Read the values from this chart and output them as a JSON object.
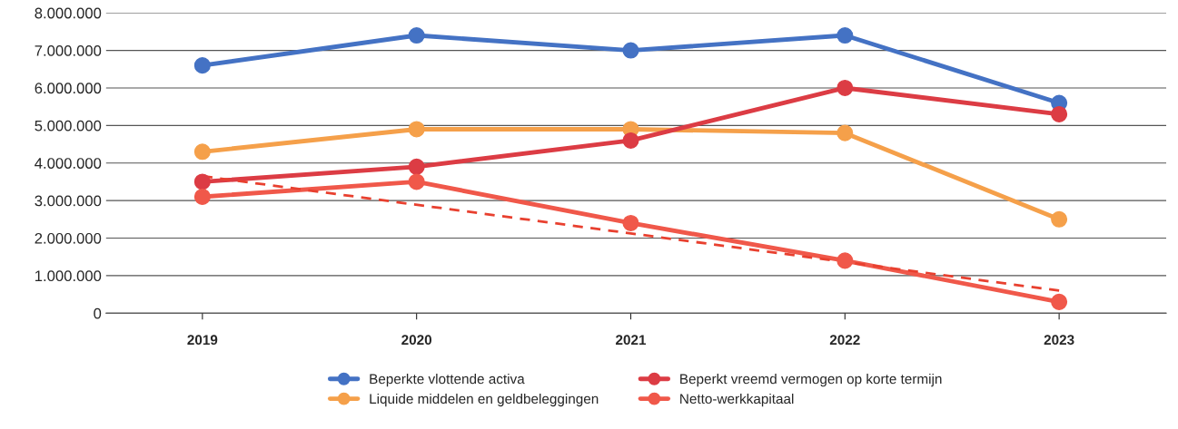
{
  "chart_data": {
    "type": "line",
    "x": [
      2019,
      2020,
      2021,
      2022,
      2023
    ],
    "xlim": [
      2018.55,
      2023.5
    ],
    "xticks": [
      2019,
      2020,
      2021,
      2022,
      2023
    ],
    "ylim": [
      0,
      8000000
    ],
    "yticks": [
      {
        "value": 0,
        "label": "0"
      },
      {
        "value": 1000000,
        "label": "1.000.000"
      },
      {
        "value": 2000000,
        "label": "2.000.000"
      },
      {
        "value": 3000000,
        "label": "3.000.000"
      },
      {
        "value": 4000000,
        "label": "4.000.000"
      },
      {
        "value": 5000000,
        "label": "5.000.000"
      },
      {
        "value": 6000000,
        "label": "6.000.000"
      },
      {
        "value": 7000000,
        "label": "7.000.000"
      },
      {
        "value": 8000000,
        "label": "8.000.000"
      }
    ],
    "grid": "y",
    "legend": "bottom",
    "marker": "circle",
    "line_style": "solid",
    "series": [
      {
        "name": "Beperkte vlottende activa",
        "color": "#4472c4",
        "values": [
          6600000,
          7400000,
          7000000,
          7400000,
          5600000
        ]
      },
      {
        "name": "Liquide middelen en geldbeleggingen",
        "color": "#f5a04a",
        "values": [
          4300000,
          4900000,
          4900000,
          4800000,
          2500000
        ]
      },
      {
        "name": "Beperkt vreemd vermogen op korte termijn",
        "color": "#dc3c44",
        "values": [
          3500000,
          3900000,
          4600000,
          6000000,
          5300000
        ]
      },
      {
        "name": "Netto-werkkapitaal",
        "color": "#f0584a",
        "values": [
          3100000,
          3500000,
          2400000,
          1400000,
          300000
        ]
      },
      {
        "type": "line",
        "color": "#e8402f",
        "x": [
          2019,
          2023
        ],
        "values": [
          3650000,
          600000
        ],
        "marker": "none",
        "line_style": "dashed"
      }
    ]
  }
}
